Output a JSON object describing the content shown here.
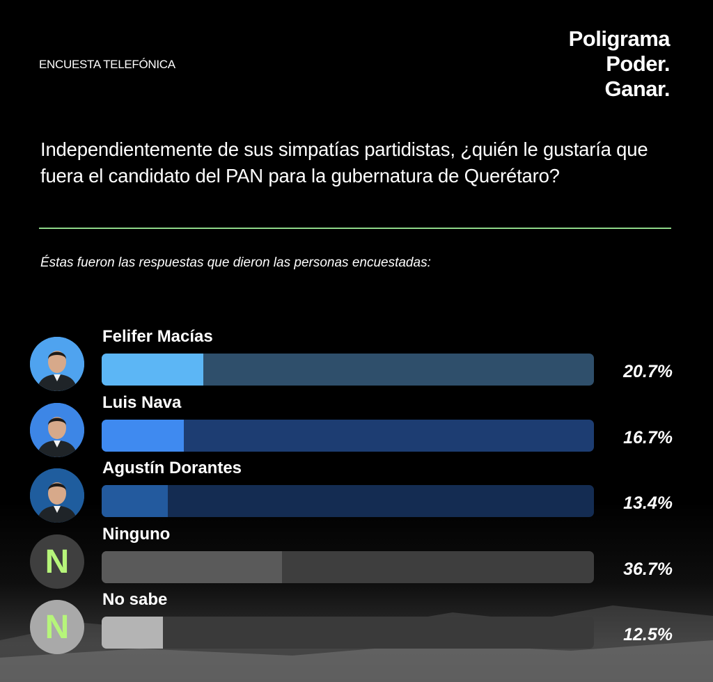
{
  "header": {
    "survey_type": "ENCUESTA TELEFÓNICA",
    "brand_lines": [
      "Poligrama",
      "Poder.",
      "Ganar."
    ]
  },
  "question": "Independientemente de sus simpatías partidistas, ¿quién le gustaría que fuera el candidato del PAN para la gubernatura de Querétaro?",
  "subtitle": "Éstas fueron las respuestas que dieron las personas encuestadas:",
  "colors": {
    "divider": "#8fd88a",
    "avatar_letter": "#b6f57a"
  },
  "chart_data": {
    "type": "bar",
    "orientation": "horizontal",
    "xlim": [
      0,
      100
    ],
    "categories": [
      "Felifer Macías",
      "Luis Nava",
      "Agustín Dorantes",
      "Ninguno",
      "No sabe"
    ],
    "values": [
      20.7,
      16.7,
      13.4,
      36.7,
      12.5
    ],
    "value_labels": [
      "20.7%",
      "16.7%",
      "13.4%",
      "36.7%",
      "12.5%"
    ],
    "avatars": [
      {
        "kind": "photo",
        "icon": "candidate-photo-icon",
        "bg": "#4fa3ef"
      },
      {
        "kind": "photo",
        "icon": "candidate-photo-icon",
        "bg": "#3d86e6"
      },
      {
        "kind": "photo",
        "icon": "candidate-photo-icon",
        "bg": "#1f5d9e"
      },
      {
        "kind": "letter",
        "letter": "N",
        "bg": "#3f3f3f"
      },
      {
        "kind": "letter",
        "letter": "N",
        "bg": "#a9a9a9"
      }
    ],
    "fill_colors": [
      "#5cb6f5",
      "#3f8af0",
      "#235a9e",
      "#5a5a5a",
      "#b4b4b4"
    ],
    "track_colors": [
      "#2f4f6b",
      "#1d3d72",
      "#142c52",
      "#3e3e3e",
      "#3a3a3a"
    ]
  }
}
